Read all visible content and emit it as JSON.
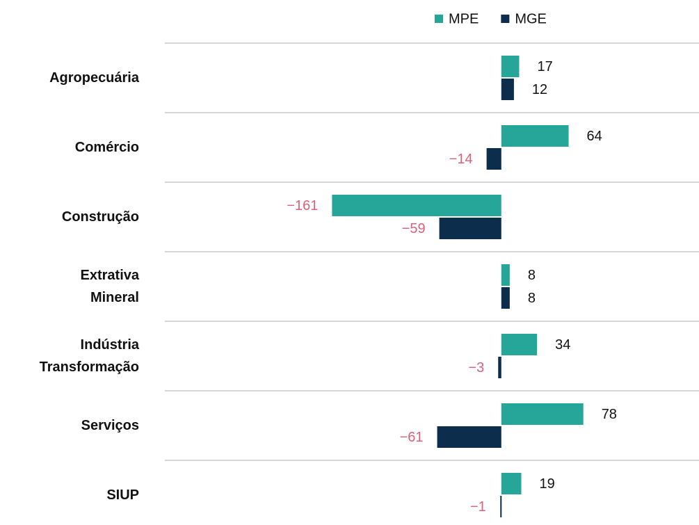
{
  "chart_data": {
    "type": "barh",
    "categories": [
      "Agropecuária",
      "Comércio",
      "Construção",
      "Extrativa\nMineral",
      "Indústria\nTransformação",
      "Serviços",
      "SIUP"
    ],
    "series": [
      {
        "name": "MPE",
        "color": "#26a699",
        "values": [
          17,
          64,
          -161,
          8,
          34,
          78,
          19
        ],
        "value_labels": [
          "17",
          "64",
          "−161",
          "8",
          "34",
          "78",
          "19"
        ]
      },
      {
        "name": "MGE",
        "color": "#0c2d4b",
        "values": [
          12,
          -14,
          -59,
          8,
          -3,
          -61,
          -1
        ],
        "value_labels": [
          "12",
          "−14",
          "−59",
          "8",
          "−3",
          "−61",
          "−1"
        ]
      }
    ],
    "xlim": [
      -320,
      188
    ],
    "negative_label_color": "#d9627a",
    "legend": "top"
  }
}
